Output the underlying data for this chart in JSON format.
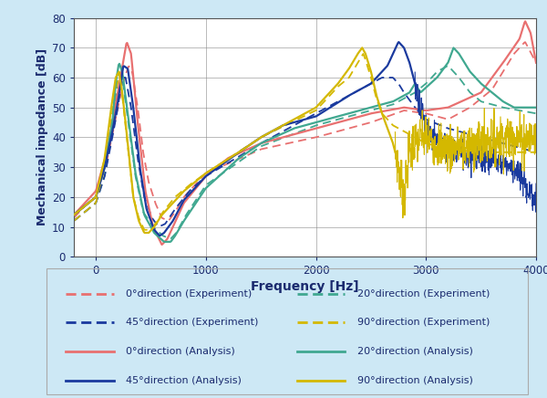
{
  "xlabel": "Frequency [Hz]",
  "ylabel": "Mechanical impedance [dB]",
  "xlim": [
    -200,
    4000
  ],
  "ylim": [
    0,
    80
  ],
  "yticks": [
    0,
    10,
    20,
    30,
    40,
    50,
    60,
    70,
    80
  ],
  "xticks": [
    0,
    1000,
    2000,
    3000,
    4000
  ],
  "bg_color": "#cde8f5",
  "plot_bg": "#ffffff",
  "legend_items": [
    {
      "label": "0°direction (Experiment)",
      "color": "#e87070",
      "ls": "dashed"
    },
    {
      "label": "20°direction (Experiment)",
      "color": "#40a890",
      "ls": "dashed"
    },
    {
      "label": "45°direction (Experiment)",
      "color": "#1a3a9e",
      "ls": "dashed"
    },
    {
      "label": "90°direction (Experiment)",
      "color": "#d4b800",
      "ls": "dashed"
    },
    {
      "label": "0°direction (Analysis)",
      "color": "#e87070",
      "ls": "solid"
    },
    {
      "label": "20°direction (Analysis)",
      "color": "#40a890",
      "ls": "solid"
    },
    {
      "label": "45°direction (Analysis)",
      "color": "#1a3a9e",
      "ls": "solid"
    },
    {
      "label": "90°direction (Analysis)",
      "color": "#d4b800",
      "ls": "solid"
    }
  ]
}
